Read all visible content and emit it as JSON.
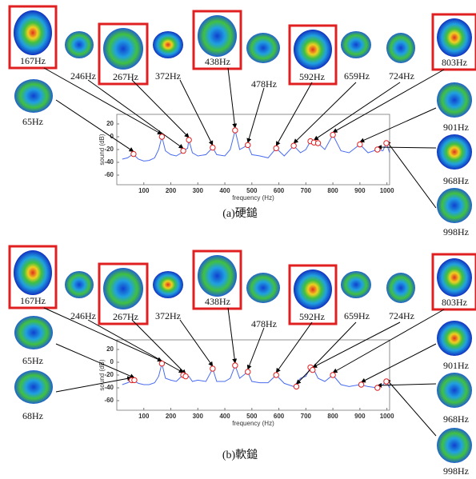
{
  "chart_data": [
    {
      "type": "line",
      "caption": "(a)硬鎚",
      "xlabel": "frequency (Hz)",
      "ylabel": "sound (dB)",
      "xlim": [
        0,
        1010
      ],
      "ylim": [
        -75,
        35
      ],
      "xticks": [
        100,
        200,
        300,
        400,
        500,
        600,
        700,
        800,
        900,
        1000
      ],
      "yticks": [
        20,
        0,
        -20,
        -40,
        -60
      ],
      "x": [
        20,
        40,
        60,
        80,
        100,
        120,
        140,
        155,
        167,
        180,
        200,
        220,
        240,
        250,
        262,
        267,
        280,
        300,
        330,
        355,
        370,
        400,
        420,
        438,
        455,
        485,
        500,
        530,
        560,
        590,
        620,
        655,
        680,
        700,
        717,
        730,
        745,
        770,
        800,
        830,
        860,
        900,
        930,
        965,
        985,
        998,
        1010
      ],
      "series": [
        {
          "color": "#4a6cf0",
          "values": [
            -35,
            -33,
            -27,
            -35,
            -38,
            -37,
            -33,
            -20,
            0,
            -22,
            -28,
            -30,
            -25,
            -21,
            -18,
            -5,
            -25,
            -30,
            -28,
            -17,
            -28,
            -30,
            -20,
            10,
            -20,
            -13,
            -28,
            -30,
            -33,
            -18,
            -30,
            -14,
            -25,
            -20,
            -7,
            -9,
            -10,
            -20,
            3,
            -22,
            -25,
            -12,
            -25,
            -20,
            -22,
            -10,
            -25
          ]
        }
      ],
      "peaks": {
        "color": "#e02020",
        "x": [
          62,
          167,
          246,
          267,
          355,
          438,
          485,
          590,
          655,
          717,
          730,
          745,
          800,
          900,
          965,
          998
        ],
        "values": [
          -27,
          0,
          -22,
          -5,
          -17,
          10,
          -13,
          -18,
          -14,
          -7,
          -9,
          -10,
          3,
          -12,
          -20,
          -10
        ]
      },
      "modes": [
        "167Hz",
        "246Hz",
        "267Hz",
        "372Hz",
        "438Hz",
        "478Hz",
        "592Hz",
        "659Hz",
        "724Hz",
        "803Hz",
        "65Hz",
        "901Hz",
        "968Hz",
        "998Hz"
      ]
    },
    {
      "type": "line",
      "caption": "(b)軟鎚",
      "xlabel": "frequency (Hz)",
      "ylabel": "sound (dB)",
      "xlim": [
        0,
        1010
      ],
      "ylim": [
        -75,
        35
      ],
      "xticks": [
        100,
        200,
        300,
        400,
        500,
        600,
        700,
        800,
        900,
        1000
      ],
      "yticks": [
        20,
        0,
        -20,
        -40,
        -60
      ],
      "x": [
        20,
        40,
        60,
        80,
        100,
        120,
        140,
        155,
        167,
        180,
        200,
        220,
        240,
        250,
        262,
        267,
        280,
        300,
        330,
        355,
        370,
        400,
        420,
        438,
        455,
        485,
        500,
        530,
        560,
        590,
        620,
        655,
        680,
        700,
        717,
        730,
        745,
        770,
        800,
        830,
        860,
        900,
        930,
        965,
        985,
        998,
        1010
      ],
      "series": [
        {
          "color": "#4a6cf0",
          "values": [
            -35,
            -32,
            -28,
            -33,
            -35,
            -35,
            -32,
            -22,
            -2,
            -25,
            -28,
            -30,
            -22,
            -21,
            -24,
            -22,
            -30,
            -28,
            -30,
            -10,
            -30,
            -30,
            -25,
            -5,
            -25,
            -15,
            -30,
            -32,
            -32,
            -20,
            -33,
            -38,
            -25,
            -22,
            -8,
            -12,
            -25,
            -30,
            -20,
            -35,
            -38,
            -35,
            -38,
            -40,
            -35,
            -30,
            -40
          ]
        }
      ],
      "peaks": {
        "color": "#e02020",
        "x": [
          55,
          65,
          167,
          246,
          255,
          355,
          438,
          485,
          590,
          665,
          717,
          725,
          800,
          905,
          965,
          998
        ],
        "values": [
          -28,
          -28,
          -2,
          -20,
          -22,
          -10,
          -5,
          -15,
          -20,
          -38,
          -8,
          -12,
          -20,
          -35,
          -40,
          -30
        ]
      },
      "modes": [
        "167Hz",
        "246Hz",
        "267Hz",
        "372Hz",
        "438Hz",
        "478Hz",
        "592Hz",
        "659Hz",
        "724Hz",
        "803Hz",
        "65Hz",
        "68Hz",
        "901Hz",
        "968Hz",
        "998Hz"
      ]
    }
  ]
}
